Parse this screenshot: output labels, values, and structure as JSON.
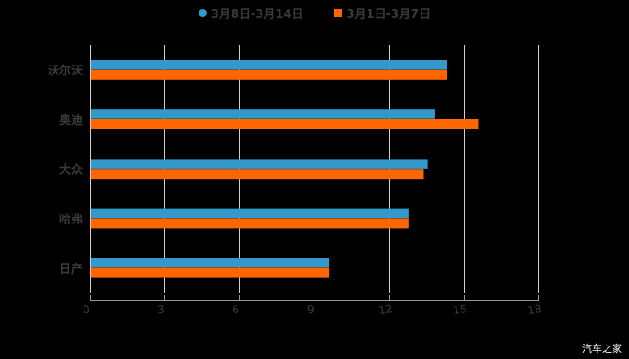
{
  "legend": {
    "items": [
      {
        "label": "3月8日-3月14日",
        "color": "#3399cc",
        "shape": "circle"
      },
      {
        "label": "3月1日-3月7日",
        "color": "#ff6600",
        "shape": "square"
      }
    ]
  },
  "watermark": "汽车之家",
  "chart_data": {
    "type": "bar",
    "orientation": "horizontal",
    "title": "",
    "xlabel": "",
    "ylabel": "",
    "categories": [
      "沃尔沃",
      "奥迪",
      "大众",
      "哈弗",
      "日产"
    ],
    "series": [
      {
        "name": "3月8日-3月14日",
        "color": "#3399cc",
        "values": [
          14.35,
          13.85,
          13.55,
          12.8,
          9.6
        ]
      },
      {
        "name": "3月1日-3月7日",
        "color": "#ff6600",
        "values": [
          14.35,
          15.6,
          13.4,
          12.8,
          9.6
        ]
      }
    ],
    "xlim": [
      0,
      18
    ],
    "xticks": [
      0,
      3,
      6,
      9,
      12,
      15,
      18
    ],
    "grid": true,
    "legend_position": "top"
  }
}
